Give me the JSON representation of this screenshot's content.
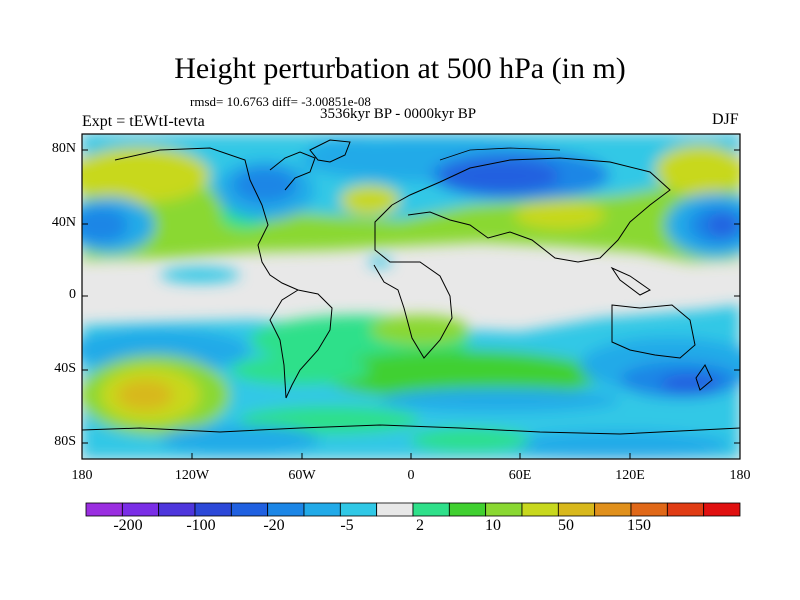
{
  "title": "Height perturbation at 500 hPa (in m)",
  "subtitle_stats": "rmsd= 10.6763 diff= -3.00851e-08",
  "period": "3536kyr BP - 0000kyr BP",
  "experiment": "Expt = tEWtI-tevta",
  "season": "DJF",
  "map": {
    "projection": "cylindrical-equidistant",
    "lon_range": [
      -180,
      180
    ],
    "lat_range": [
      -90,
      90
    ],
    "lat_ticks": [
      "80N",
      "40N",
      "0",
      "40S",
      "80S"
    ],
    "lon_ticks": [
      "180",
      "120W",
      "60W",
      "0",
      "60E",
      "120E",
      "180"
    ]
  },
  "colorbar": {
    "colors": [
      "#9a2ee0",
      "#7a2ee6",
      "#4e36dc",
      "#2c48d8",
      "#2060e0",
      "#1c86e6",
      "#22aae8",
      "#30c8e6",
      "#e8e8e8",
      "#2fe08a",
      "#40d030",
      "#8ad832",
      "#c8d81e",
      "#d8b81c",
      "#e0901c",
      "#e06818",
      "#e03c14",
      "#e01010"
    ],
    "labels": [
      "-200",
      "-100",
      "-20",
      "-5",
      "2",
      "10",
      "50",
      "150"
    ]
  }
}
